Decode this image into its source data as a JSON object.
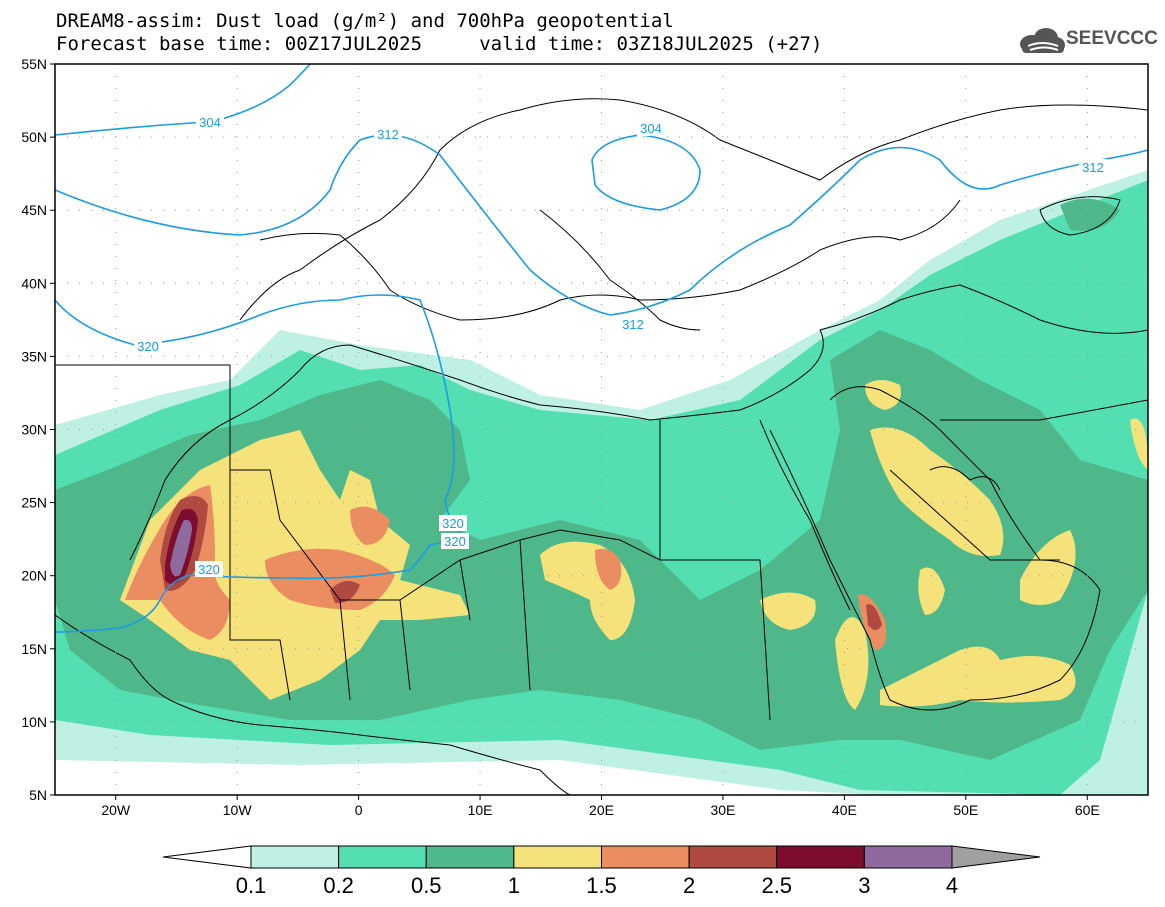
{
  "header": {
    "line1": "DREAM8-assim: Dust load (g/m²) and 700hPa geopotential",
    "line2": "Forecast base time: 00Z17JUL2025     valid time: 03Z18JUL2025 (+27)"
  },
  "logo": {
    "text": "SEEVCCC",
    "icon": "cloud-icon"
  },
  "map": {
    "lat_labels": [
      "55N",
      "50N",
      "45N",
      "40N",
      "35N",
      "30N",
      "25N",
      "20N",
      "15N",
      "10N",
      "5N"
    ],
    "lon_labels": [
      "20W",
      "10W",
      "0",
      "10E",
      "20E",
      "30E",
      "40E",
      "50E",
      "60E"
    ],
    "lat_range": [
      5,
      55
    ],
    "lon_range": [
      -25,
      65
    ],
    "contour_color": "#1c9be6",
    "contours": [
      {
        "label": "304"
      },
      {
        "label": "312"
      },
      {
        "label": "304"
      },
      {
        "label": "312"
      },
      {
        "label": "320"
      },
      {
        "label": "320"
      },
      {
        "label": "320"
      },
      {
        "label": "320"
      },
      {
        "label": "312"
      }
    ]
  },
  "colorbar": {
    "labels": [
      "0.1",
      "0.2",
      "0.5",
      "1",
      "1.5",
      "2",
      "2.5",
      "3",
      "4"
    ],
    "colors": [
      "#bff0e4",
      "#54dfb3",
      "#4fb88a",
      "#f5e27b",
      "#ea8e62",
      "#b04a40",
      "#7d0c2e",
      "#8e6a9e",
      "#a0a0a0"
    ]
  }
}
